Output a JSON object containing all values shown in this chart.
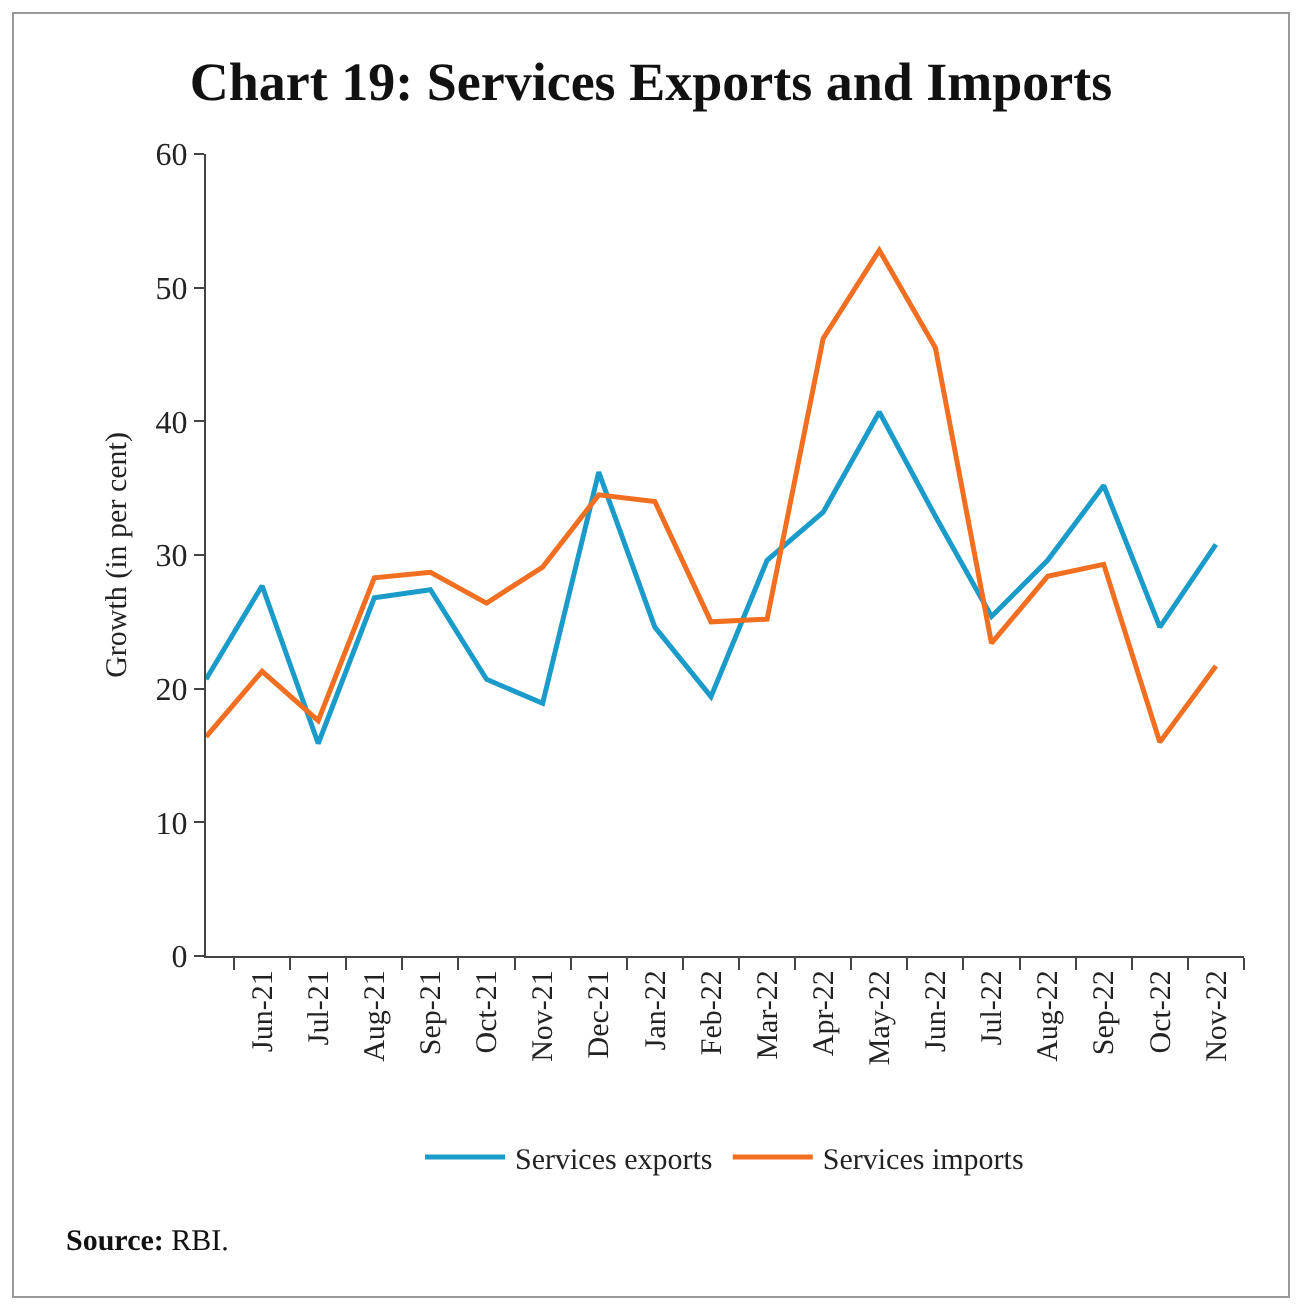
{
  "chart_data": {
    "type": "line",
    "title": "Chart 19: Services Exports and Imports",
    "ylabel": "Growth (in per cent)",
    "categories": [
      null,
      "Jun-21",
      "Jul-21",
      "Aug-21",
      "Sep-21",
      "Oct-21",
      "Nov-21",
      "Dec-21",
      "Jan-22",
      "Feb-22",
      "Mar-22",
      "Apr-22",
      "May-22",
      "Jun-22",
      "Jul-22",
      "Aug-22",
      "Sep-22",
      "Oct-22",
      "Nov-22"
    ],
    "series": [
      {
        "name": "Services exports",
        "color": "#1a9bc9",
        "values": [
          20.7,
          27.7,
          15.9,
          26.8,
          27.4,
          20.7,
          18.9,
          36.2,
          24.6,
          19.4,
          29.6,
          33.2,
          40.7,
          32.9,
          25.4,
          29.6,
          35.2,
          24.6,
          30.8
        ]
      },
      {
        "name": "Services imports",
        "color": "#f26f21",
        "values": [
          16.4,
          21.3,
          17.6,
          28.3,
          28.7,
          26.4,
          29.1,
          34.5,
          34.0,
          25.0,
          25.2,
          46.2,
          52.8,
          45.5,
          23.4,
          28.4,
          29.3,
          16.0,
          21.7
        ]
      }
    ],
    "ylim": [
      0,
      60
    ],
    "yticks": [
      0,
      10,
      20,
      30,
      40,
      50,
      60
    ],
    "grid": false,
    "legend": "bottom",
    "marker": "none",
    "line_style": "solid",
    "annotations": [
      "Source: RBI."
    ]
  }
}
